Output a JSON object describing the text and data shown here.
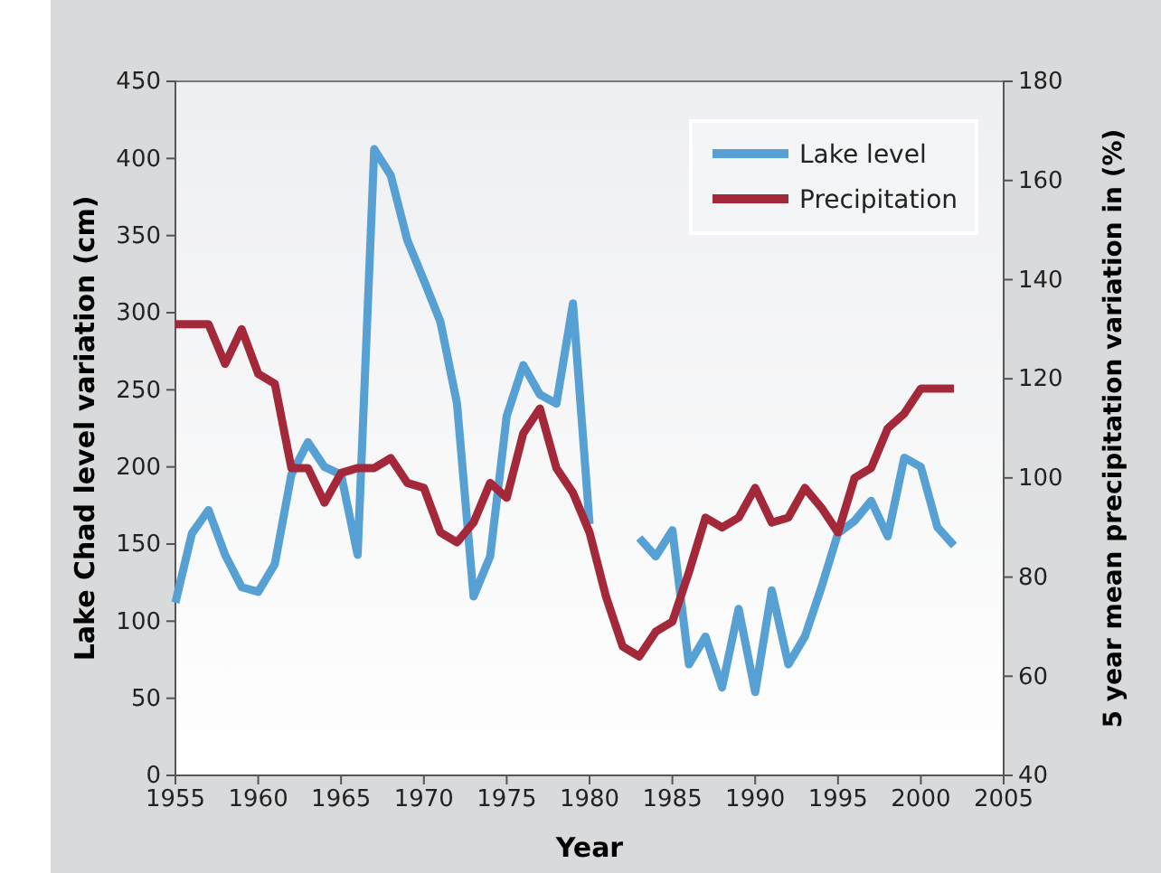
{
  "chart_data": {
    "type": "line",
    "xlabel": "Year",
    "ylabel": "Lake Chad level variation (cm)",
    "y2label": "5 year mean precipitation variation in (%)",
    "x": [
      1955,
      1956,
      1957,
      1958,
      1959,
      1960,
      1961,
      1962,
      1963,
      1964,
      1965,
      1966,
      1967,
      1968,
      1969,
      1970,
      1971,
      1972,
      1973,
      1974,
      1975,
      1976,
      1977,
      1978,
      1979,
      1980,
      1981,
      1982,
      1983,
      1984,
      1985,
      1986,
      1987,
      1988,
      1989,
      1990,
      1991,
      1992,
      1993,
      1994,
      1995,
      1996,
      1997,
      1998,
      1999,
      2000,
      2001,
      2002
    ],
    "series": [
      {
        "name": "Lake level",
        "color": "#56a0d3",
        "values": [
          112,
          157,
          172,
          143,
          122,
          119,
          137,
          195,
          216,
          200,
          195,
          143,
          406,
          389,
          347,
          321,
          294,
          241,
          116,
          142,
          233,
          266,
          247,
          241,
          306,
          163,
          null,
          null,
          154,
          142,
          159,
          72,
          90,
          57,
          108,
          54,
          120,
          72,
          90,
          122,
          157,
          165,
          178,
          155,
          206,
          200,
          161,
          149
        ]
      },
      {
        "name": "Precipitation",
        "color": "#a3293a",
        "axis": "y2",
        "values": [
          131,
          131,
          131,
          123,
          130,
          121,
          119,
          102,
          102,
          95,
          101,
          102,
          102,
          104,
          99,
          98,
          89,
          87,
          91,
          99,
          96,
          109,
          114,
          102,
          97,
          89,
          76,
          66,
          64,
          69,
          71,
          81,
          92,
          90,
          92,
          98,
          91,
          92,
          98,
          94,
          89,
          100,
          102,
          110,
          113,
          118,
          118,
          118
        ]
      }
    ],
    "xlim": [
      1955,
      2005
    ],
    "xticks": [
      1955,
      1960,
      1965,
      1970,
      1975,
      1980,
      1985,
      1990,
      1995,
      2000,
      2005
    ],
    "ylim": [
      0,
      450
    ],
    "yticks": [
      0,
      50,
      100,
      150,
      200,
      250,
      300,
      350,
      400,
      450
    ],
    "y2lim": [
      40,
      180
    ],
    "y2ticks": [
      40,
      60,
      80,
      100,
      120,
      140,
      160,
      180
    ],
    "grid": false,
    "legend": "top right",
    "line_style": "solid",
    "marker": "none"
  }
}
